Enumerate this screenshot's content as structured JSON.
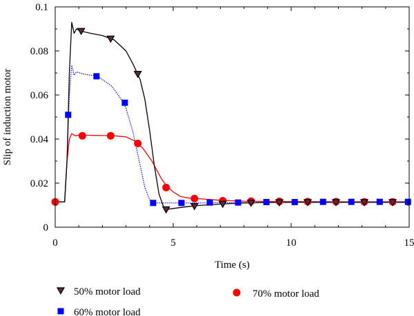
{
  "chart_data": {
    "type": "line",
    "xlabel": "Time (s)",
    "ylabel": "Slip of induction motor",
    "xlim": [
      0,
      15
    ],
    "ylim": [
      0,
      0.1
    ],
    "x_ticks": [
      0,
      5,
      10,
      15
    ],
    "x_tick_labels": [
      "0",
      "5",
      "10",
      "15"
    ],
    "y_ticks": [
      0,
      0.02,
      0.04,
      0.06,
      0.08,
      0.1
    ],
    "y_tick_labels": [
      "0",
      "0.02",
      "0.04",
      "0.06",
      "0.08",
      "0.1"
    ],
    "grid": false,
    "legend_position": "bottom",
    "series": [
      {
        "name": "50% motor load",
        "color": "#000000",
        "marker_color": "#5a2b45",
        "marker": "triangle-down",
        "line_style": "solid",
        "points": [
          [
            0,
            0.0115
          ],
          [
            0.4,
            0.0115
          ],
          [
            0.5,
            0.03
          ],
          [
            0.6,
            0.07
          ],
          [
            0.7,
            0.093
          ],
          [
            0.8,
            0.088
          ],
          [
            0.9,
            0.09
          ],
          [
            1.1,
            0.089
          ],
          [
            1.5,
            0.088
          ],
          [
            2.0,
            0.087
          ],
          [
            2.5,
            0.085
          ],
          [
            3.0,
            0.08
          ],
          [
            3.3,
            0.074
          ],
          [
            3.6,
            0.067
          ],
          [
            3.8,
            0.058
          ],
          [
            4.0,
            0.044
          ],
          [
            4.2,
            0.028
          ],
          [
            4.4,
            0.015
          ],
          [
            4.6,
            0.009
          ],
          [
            4.7,
            0.008
          ],
          [
            5.0,
            0.0085
          ],
          [
            5.5,
            0.0092
          ],
          [
            6.0,
            0.0098
          ],
          [
            7.0,
            0.0105
          ],
          [
            8.0,
            0.011
          ],
          [
            9.0,
            0.0112
          ],
          [
            10.0,
            0.0113
          ],
          [
            12.0,
            0.0113
          ],
          [
            15.0,
            0.0113
          ]
        ],
        "markers": [
          [
            1.1,
            0.089
          ],
          [
            2.35,
            0.0855
          ],
          [
            3.5,
            0.0695
          ],
          [
            4.7,
            0.008
          ],
          [
            5.9,
            0.0095
          ],
          [
            7.1,
            0.0105
          ],
          [
            8.3,
            0.011
          ],
          [
            9.5,
            0.0112
          ],
          [
            10.7,
            0.0113
          ],
          [
            11.9,
            0.0113
          ],
          [
            13.1,
            0.0113
          ],
          [
            14.3,
            0.0113
          ]
        ]
      },
      {
        "name": "60% motor load",
        "color": "#0000ff",
        "marker_color": "#0000ff",
        "marker": "square",
        "line_style": "dotted",
        "points": [
          [
            0,
            0.0115
          ],
          [
            0.4,
            0.0115
          ],
          [
            0.5,
            0.03
          ],
          [
            0.6,
            0.06
          ],
          [
            0.7,
            0.0735
          ],
          [
            0.8,
            0.069
          ],
          [
            0.9,
            0.0705
          ],
          [
            1.2,
            0.0695
          ],
          [
            1.8,
            0.0685
          ],
          [
            2.4,
            0.064
          ],
          [
            2.8,
            0.058
          ],
          [
            3.0,
            0.054
          ],
          [
            3.3,
            0.043
          ],
          [
            3.6,
            0.028
          ],
          [
            3.8,
            0.018
          ],
          [
            4.0,
            0.0125
          ],
          [
            4.2,
            0.011
          ],
          [
            5.0,
            0.011
          ],
          [
            6.0,
            0.011
          ],
          [
            8.0,
            0.0112
          ],
          [
            10.0,
            0.0114
          ],
          [
            12.0,
            0.0115
          ],
          [
            15.0,
            0.0115
          ]
        ],
        "markers": [
          [
            0.55,
            0.051
          ],
          [
            1.75,
            0.0685
          ],
          [
            2.95,
            0.0565
          ],
          [
            4.15,
            0.011
          ],
          [
            5.35,
            0.011
          ],
          [
            6.55,
            0.0112
          ],
          [
            7.75,
            0.0112
          ],
          [
            8.95,
            0.0114
          ],
          [
            10.15,
            0.0114
          ],
          [
            11.35,
            0.0115
          ],
          [
            12.55,
            0.0115
          ],
          [
            13.75,
            0.0115
          ],
          [
            14.95,
            0.0115
          ]
        ]
      },
      {
        "name": "70% motor load",
        "color": "#ff0000",
        "marker_color": "#ff0000",
        "marker": "circle",
        "line_style": "solid",
        "points": [
          [
            0,
            0.0115
          ],
          [
            0.4,
            0.0115
          ],
          [
            0.5,
            0.03
          ],
          [
            0.6,
            0.04
          ],
          [
            0.7,
            0.0425
          ],
          [
            0.85,
            0.0415
          ],
          [
            1.0,
            0.0418
          ],
          [
            1.5,
            0.0417
          ],
          [
            2.0,
            0.0416
          ],
          [
            2.5,
            0.0415
          ],
          [
            3.0,
            0.041
          ],
          [
            3.4,
            0.039
          ],
          [
            3.7,
            0.036
          ],
          [
            3.9,
            0.033
          ],
          [
            4.1,
            0.03
          ],
          [
            4.3,
            0.026
          ],
          [
            4.5,
            0.022
          ],
          [
            4.7,
            0.019
          ],
          [
            5.0,
            0.016
          ],
          [
            5.3,
            0.014
          ],
          [
            5.6,
            0.0133
          ],
          [
            6.0,
            0.013
          ],
          [
            7.0,
            0.0122
          ],
          [
            8.0,
            0.0118
          ],
          [
            10.0,
            0.0116
          ],
          [
            12.0,
            0.0115
          ],
          [
            15.0,
            0.0115
          ]
        ],
        "markers": [
          [
            0,
            0.0115
          ],
          [
            1.15,
            0.0415
          ],
          [
            2.35,
            0.0415
          ],
          [
            3.5,
            0.038
          ],
          [
            4.7,
            0.018
          ],
          [
            5.9,
            0.013
          ],
          [
            7.1,
            0.012
          ],
          [
            8.3,
            0.0118
          ],
          [
            9.5,
            0.0117
          ],
          [
            10.7,
            0.0116
          ],
          [
            11.9,
            0.0116
          ],
          [
            13.1,
            0.0115
          ],
          [
            14.3,
            0.0115
          ]
        ]
      }
    ]
  }
}
